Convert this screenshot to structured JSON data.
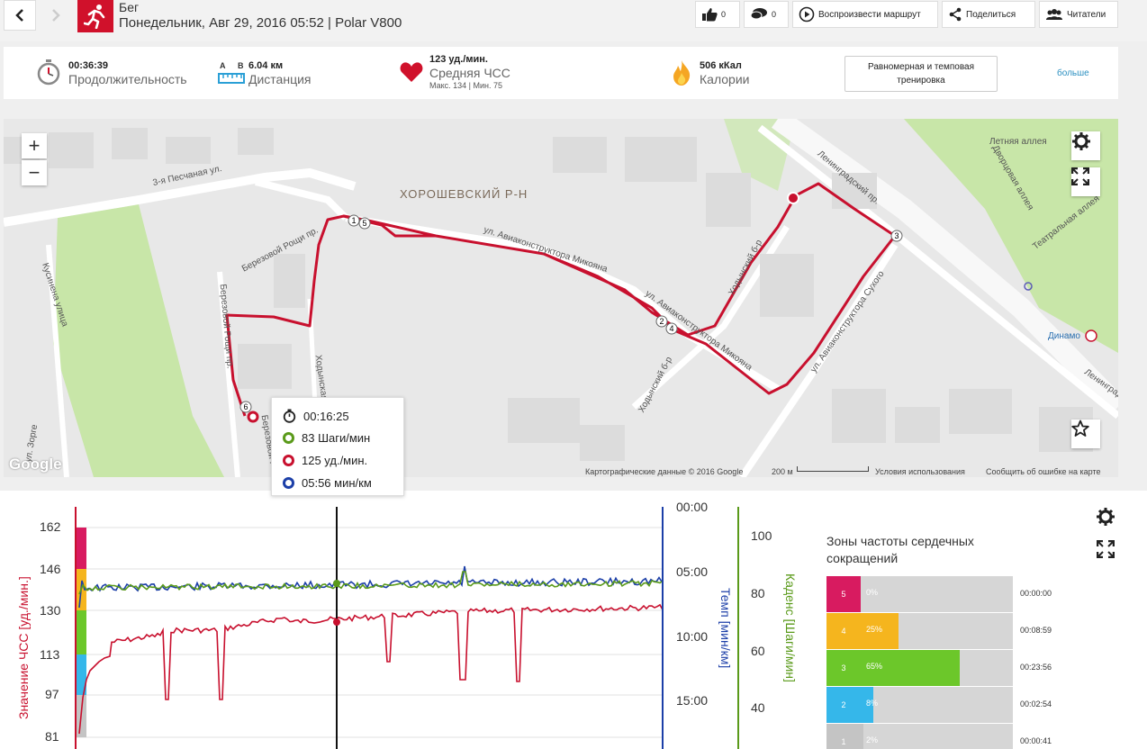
{
  "header": {
    "sport": "Бег",
    "subtitle": "Понедельник, Авг 29, 2016 05:52 | Polar V800",
    "likes": "0",
    "comments": "0",
    "replay_label": "Воспроизвести маршрут",
    "share_label": "Поделиться",
    "readers_label": "Читатели"
  },
  "summary": {
    "duration_value": "00:36:39",
    "duration_label": "Продолжительность",
    "distance_a": "A",
    "distance_b": "B",
    "distance_value": "6.04 км",
    "distance_label": "Дистанция",
    "hr_value": "123 уд./мин.",
    "hr_label": "Средняя ЧСС",
    "hr_sub": "Макс. 134  |  Мин. 75",
    "calories_value": "506 кКал",
    "calories_label": "Калории",
    "training_type": "Равномерная и темповая тренировка",
    "more_link": "больше"
  },
  "map": {
    "district": "ХОРОШЕВСКИЙ Р-Н",
    "streets": {
      "s1": "3-я Песчаная ул.",
      "s2": "Березовой Рощи пр.",
      "s3": "Кусинена улица",
      "s4": "ул. Авиаконструктора Микояна",
      "s5": "ул. Авиаконструктора Микояна",
      "s6": "Ходынский б-р",
      "s7": "Ходынский б-р",
      "s8": "Ленинградский пр.",
      "s9": "ул. Авиаконструктора Сухого",
      "s10": "Летняя аллея",
      "s11": "Дворцовая аллея",
      "s12": "Театральная аллея",
      "s13": "Динамо",
      "s14": "ул. Зорге",
      "s15": "Ленинградский",
      "s16": "Березовой Рощи пр.",
      "s17": "Ходынская ул.",
      "s18": "Березовой Рощи пр."
    },
    "zoom_in": "+",
    "zoom_out": "−",
    "google": "Google",
    "footer_data": "Картографические данные © 2016 Google",
    "footer_scale": "200 м",
    "footer_terms": "Условия использования",
    "footer_report": "Сообщить об ошибке на карте",
    "markers": [
      "1",
      "5",
      "2",
      "4",
      "3",
      "6"
    ]
  },
  "tooltip": {
    "time": "00:16:25",
    "cadence": "83 Шаги/мин",
    "hr": "125 уд./мин.",
    "pace": "05:56 мин/км"
  },
  "chart_data": {
    "type": "line",
    "hr_axis": {
      "label": "Значение ЧСС [уд./мин.]",
      "ticks": [
        "162",
        "146",
        "130",
        "113",
        "97",
        "81"
      ]
    },
    "pace_axis": {
      "label": "Темп [мин/км]",
      "ticks": [
        "00:00",
        "05:00",
        "10:00",
        "15:00"
      ]
    },
    "cadence_axis": {
      "label": "Каденс [Шаги/мин]",
      "ticks": [
        "100",
        "80",
        "60",
        "40"
      ]
    },
    "series": [
      {
        "name": "ЧСС",
        "color": "#c8102e"
      },
      {
        "name": "Темп",
        "color": "#1c3fa8"
      },
      {
        "name": "Каденс",
        "color": "#5a9a1a"
      }
    ],
    "cursor": {
      "time": "00:16:25",
      "hr": 125,
      "cadence": 83,
      "pace": "05:56"
    }
  },
  "zones": {
    "title": "Зоны частоты сердечных сокращений",
    "items": [
      {
        "num": "5",
        "pct": "0%",
        "time": "00:00:00",
        "fraction": 0.0,
        "color": "#d81b60"
      },
      {
        "num": "4",
        "pct": "25%",
        "time": "00:08:59",
        "fraction": 0.25,
        "color": "#f5b51e"
      },
      {
        "num": "3",
        "pct": "65%",
        "time": "00:23:56",
        "fraction": 0.65,
        "color": "#6cc72a"
      },
      {
        "num": "2",
        "pct": "8%",
        "time": "00:02:54",
        "fraction": 0.08,
        "color": "#35b7ea"
      },
      {
        "num": "1",
        "pct": "2%",
        "time": "00:00:41",
        "fraction": 0.02,
        "color": "#c4c4c4"
      }
    ]
  }
}
